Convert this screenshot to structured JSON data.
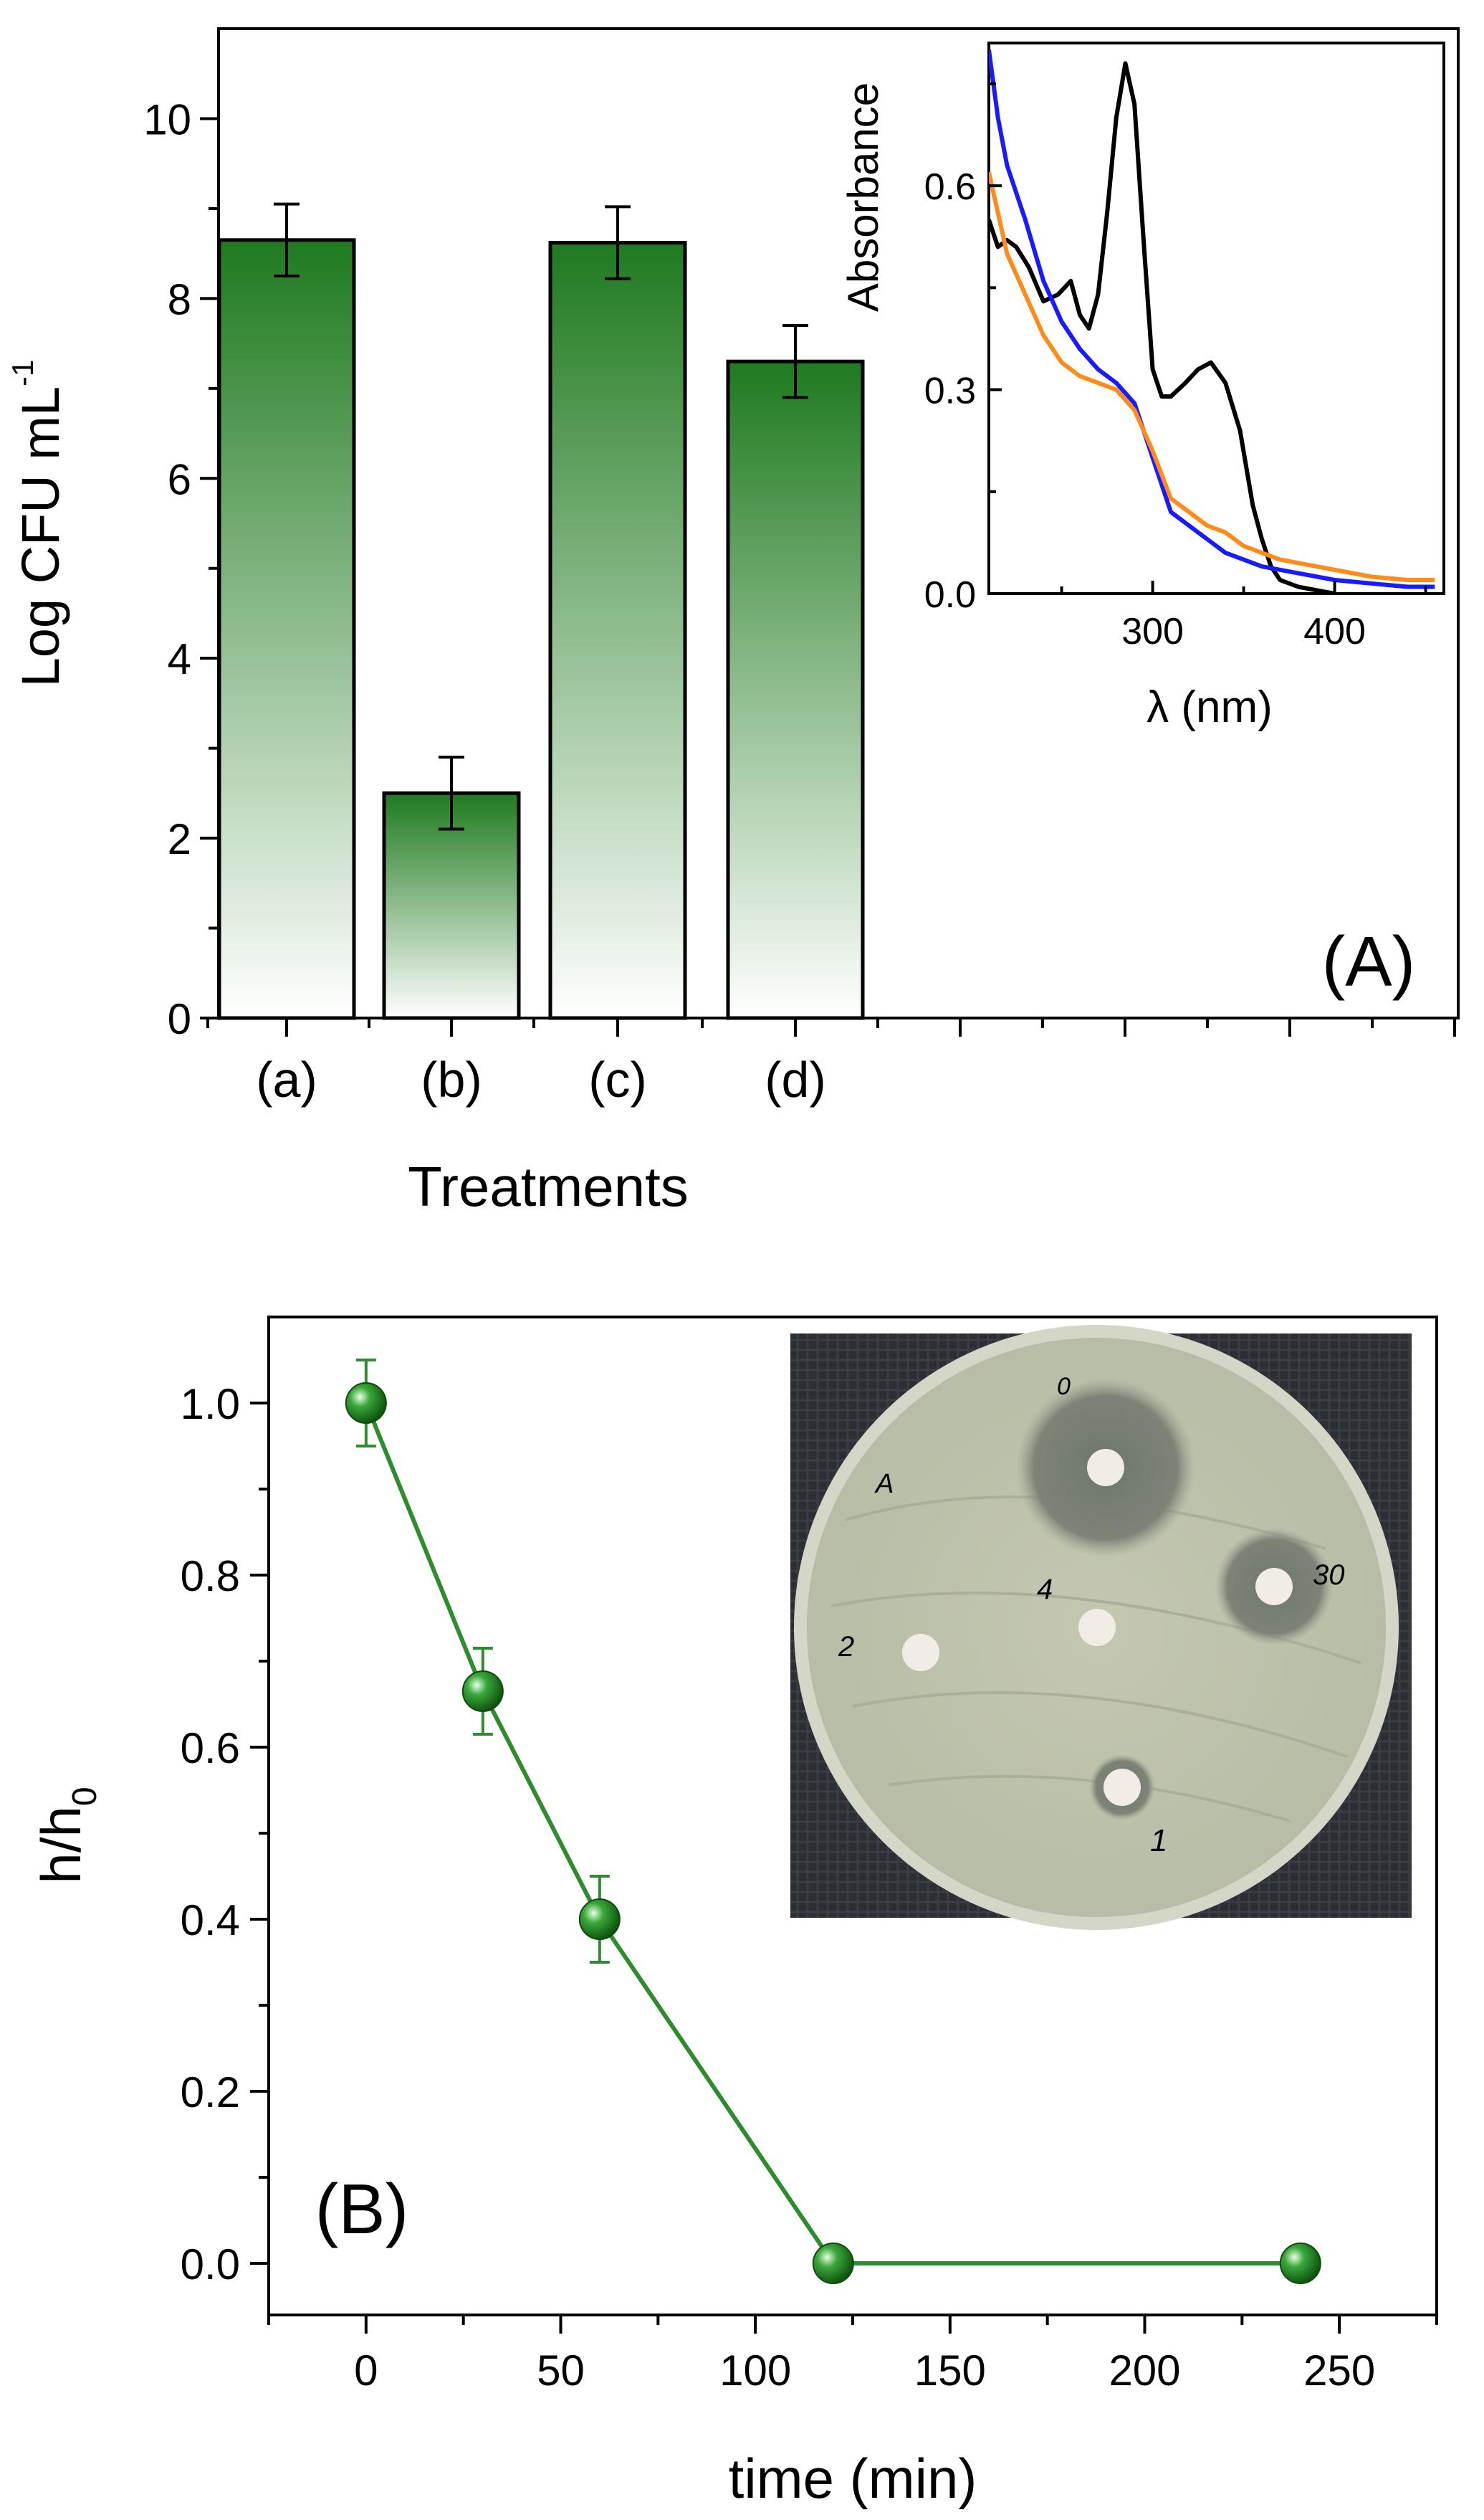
{
  "chart_data": [
    {
      "panel": "(A)",
      "type": "bar",
      "categories": [
        "(a)",
        "(b)",
        "(c)",
        "(d)"
      ],
      "values": [
        8.65,
        2.5,
        8.62,
        7.3
      ],
      "errors": [
        0.4,
        0.4,
        0.4,
        0.4
      ],
      "xlabel": "Treatments",
      "ylabel": "Log CFU mL",
      "ylabel_sup": "-1",
      "ylim": [
        0,
        11
      ],
      "yticks": [
        "0",
        "2",
        "4",
        "6",
        "8",
        "10"
      ],
      "bar_color": "#1f7a1f",
      "grid": false,
      "inset": {
        "type": "line",
        "xlabel": "λ (nm)",
        "ylabel": "Absorbance",
        "xlim": [
          210,
          460
        ],
        "ylim": [
          0,
          0.81
        ],
        "xticks": [
          "300",
          "400"
        ],
        "yticks": [
          "0.0",
          "0.3",
          "0.6"
        ],
        "series": [
          {
            "color": "#000000",
            "x": [
              210,
              215,
              220,
              225,
              232,
              240,
              248,
              255,
              260,
              265,
              270,
              275,
              280,
              285,
              290,
              295,
              300,
              305,
              310,
              318,
              325,
              332,
              340,
              348,
              355,
              360,
              365,
              370,
              380,
              390,
              400
            ],
            "y": [
              0.55,
              0.51,
              0.52,
              0.51,
              0.48,
              0.43,
              0.44,
              0.46,
              0.41,
              0.39,
              0.44,
              0.56,
              0.7,
              0.78,
              0.72,
              0.52,
              0.33,
              0.29,
              0.29,
              0.31,
              0.33,
              0.34,
              0.31,
              0.24,
              0.13,
              0.08,
              0.04,
              0.02,
              0.01,
              0.005,
              0.0
            ]
          },
          {
            "color": "#1a1aff",
            "x": [
              210,
              215,
              220,
              230,
              240,
              250,
              260,
              270,
              280,
              290,
              300,
              310,
              320,
              330,
              340,
              350,
              360,
              370,
              380,
              400,
              420,
              440,
              455
            ],
            "y": [
              0.8,
              0.7,
              0.63,
              0.55,
              0.46,
              0.4,
              0.36,
              0.33,
              0.31,
              0.28,
              0.2,
              0.12,
              0.1,
              0.08,
              0.06,
              0.05,
              0.04,
              0.035,
              0.03,
              0.02,
              0.015,
              0.01,
              0.01
            ]
          },
          {
            "color": "#ff8c1a",
            "x": [
              210,
              215,
              220,
              230,
              240,
              250,
              260,
              270,
              280,
              290,
              300,
              310,
              320,
              330,
              340,
              350,
              360,
              370,
              380,
              400,
              420,
              440,
              455
            ],
            "y": [
              0.62,
              0.56,
              0.5,
              0.44,
              0.38,
              0.34,
              0.32,
              0.31,
              0.3,
              0.27,
              0.21,
              0.14,
              0.12,
              0.1,
              0.09,
              0.07,
              0.06,
              0.05,
              0.045,
              0.035,
              0.025,
              0.02,
              0.02
            ]
          }
        ]
      }
    },
    {
      "panel": "(B)",
      "type": "line",
      "x": [
        0,
        30,
        60,
        120,
        240
      ],
      "y": [
        1.0,
        0.665,
        0.4,
        0.0,
        0.0
      ],
      "errors": [
        0.05,
        0.05,
        0.05,
        0,
        0
      ],
      "xlabel": "time (min)",
      "ylabel": "h/h",
      "ylabel_sub": "0",
      "xlim": [
        -25,
        275
      ],
      "ylim": [
        -0.06,
        1.1
      ],
      "xticks": [
        "0",
        "50",
        "100",
        "150",
        "200",
        "250"
      ],
      "yticks": [
        "0.0",
        "0.2",
        "0.4",
        "0.6",
        "0.8",
        "1.0"
      ],
      "color": "#2e8b2e",
      "grid": false,
      "photo_inset": {
        "description": "agar plate with inhibition zones",
        "labels": [
          "0",
          "A",
          "30",
          "4",
          "2",
          "1"
        ]
      }
    }
  ]
}
